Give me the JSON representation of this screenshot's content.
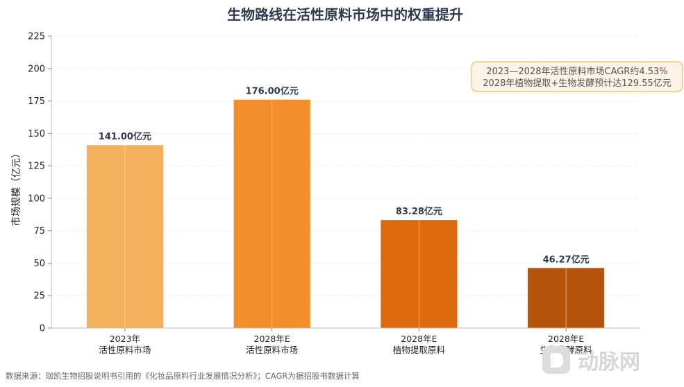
{
  "chart_data": {
    "type": "bar",
    "title": "生物路线在活性原料市场中的权重提升",
    "ylabel": "市场规模（亿元）",
    "xlabel": "",
    "ylim": [
      0,
      225
    ],
    "yticks": [
      0,
      25,
      50,
      75,
      100,
      125,
      150,
      175,
      200,
      225
    ],
    "grid": true,
    "categories": [
      {
        "line1": "2023年",
        "line2": "活性原料市场"
      },
      {
        "line1": "2028年E",
        "line2": "活性原料市场"
      },
      {
        "line1": "2028年E",
        "line2": "植物提取原料"
      },
      {
        "line1": "2028年E",
        "line2": "生物发酵原料"
      }
    ],
    "values": [
      141.0,
      176.0,
      83.28,
      46.27
    ],
    "data_labels": [
      "141.00亿元",
      "176.00亿元",
      "83.28亿元",
      "46.27亿元"
    ],
    "colors": [
      "#f5b05b",
      "#f28e2b",
      "#dc6b0f",
      "#b5530a"
    ],
    "annotation": {
      "line1": "2023—2028年活性原料市场CAGR约4.53%",
      "line2": "2028年植物提取+生物发酵预计达129.55亿元"
    }
  },
  "source_note": "数据来源：珈凯生物招股说明书引用的《化妆品原料行业发展情况分析》；CAGR为据招股书数据计算",
  "watermark": "动脉网"
}
